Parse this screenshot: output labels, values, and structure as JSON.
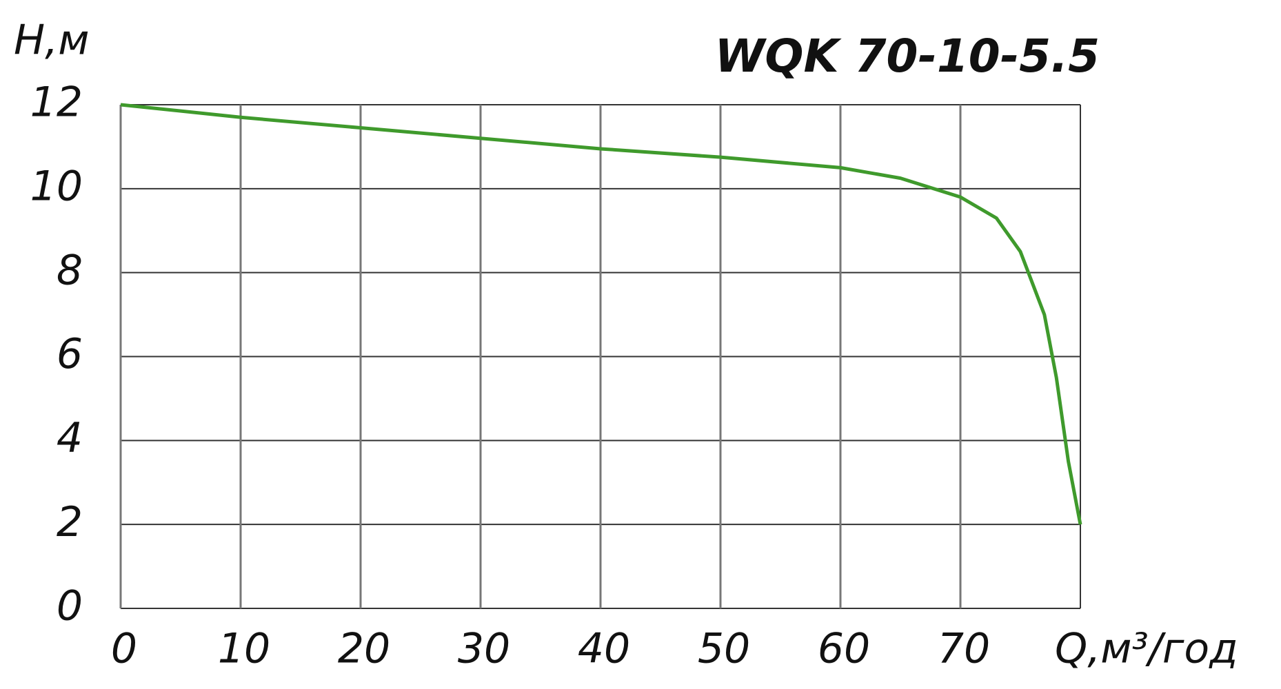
{
  "chart_data": {
    "type": "line",
    "title": "WQK 70-10-5.5",
    "y_label": "Н,м",
    "x_label": "Q,м³/год",
    "x": [
      0,
      10,
      20,
      30,
      40,
      50,
      60,
      65,
      70,
      73,
      75,
      77,
      78,
      79,
      80
    ],
    "series": [
      {
        "name": "H",
        "color": "#3f9a2c",
        "values": [
          12,
          11.7,
          11.45,
          11.2,
          10.95,
          10.75,
          10.5,
          10.25,
          9.8,
          9.3,
          8.5,
          7,
          5.5,
          3.5,
          2
        ]
      }
    ],
    "xlim": [
      0,
      80
    ],
    "xticks": [
      0,
      10,
      20,
      30,
      40,
      50,
      60,
      70
    ],
    "ylim": [
      0,
      12
    ],
    "yticks": [
      0,
      2,
      4,
      6,
      8,
      10,
      12
    ],
    "grid": true
  }
}
